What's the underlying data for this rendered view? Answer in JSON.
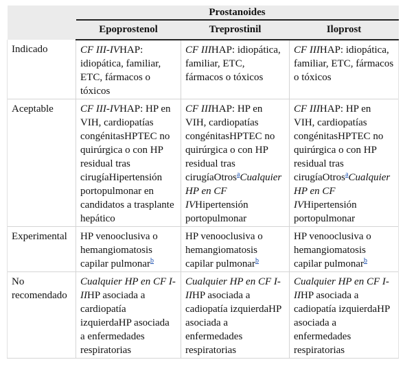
{
  "table": {
    "group_header": "Prostanoides",
    "columns": [
      "Epoprostenol",
      "Treprostinil",
      "Iloprost"
    ],
    "rows": [
      {
        "label": "Indicado",
        "cells": [
          [
            {
              "t": "CF III-IV",
              "i": true
            },
            {
              "t": "HAP: idiopática, familiar, ETC, fármacos o tóxicos"
            }
          ],
          [
            {
              "t": "CF III",
              "i": true
            },
            {
              "t": "HAP: idiopática, familiar, ETC, fármacos o tóxicos"
            }
          ],
          [
            {
              "t": "CF III",
              "i": true
            },
            {
              "t": "HAP: idiopática, familiar, ETC, fármacos o tóxicos"
            }
          ]
        ]
      },
      {
        "label": "Aceptable",
        "cells": [
          [
            {
              "t": "CF III-IV",
              "i": true
            },
            {
              "t": "HAP: HP en VIH, cardiopatías congénitasHPTEC no quirúrgica o con HP residual tras cirugíaHipertensión portopulmonar en candidatos a trasplante hepático"
            }
          ],
          [
            {
              "t": "CF III",
              "i": true
            },
            {
              "t": "HAP: HP en VIH, cardiopatías congénitasHPTEC no quirúrgica o con HP residual tras cirugíaOtros"
            },
            {
              "t": "a",
              "fn": true
            },
            {
              "t": "Cualquier HP en CF IV",
              "i": true
            },
            {
              "t": "Hipertensión portopulmonar"
            }
          ],
          [
            {
              "t": "CF III",
              "i": true
            },
            {
              "t": "HAP: HP en VIH, cardiopatías congénitasHPTEC no quirúrgica o con HP residual tras cirugíaOtros"
            },
            {
              "t": "a",
              "fn": true
            },
            {
              "t": "Cualquier HP en CF IV",
              "i": true
            },
            {
              "t": "Hipertensión portopulmonar"
            }
          ]
        ]
      },
      {
        "label": "Experimental",
        "cells": [
          [
            {
              "t": "HP venooclusiva o hemangiomatosis capilar pulmonar"
            },
            {
              "t": "b",
              "fn": true
            }
          ],
          [
            {
              "t": "HP venooclusiva o hemangiomatosis capilar pulmonar"
            },
            {
              "t": "b",
              "fn": true
            }
          ],
          [
            {
              "t": "HP venooclusiva o hemangiomatosis capilar pulmonar"
            },
            {
              "t": "b",
              "fn": true
            }
          ]
        ]
      },
      {
        "label": "No recomendado",
        "cells": [
          [
            {
              "t": "Cualquier HP en CF I-II",
              "i": true
            },
            {
              "t": "HP asociada a cardiopatía izquierdaHP asociada a enfermedades respiratorias"
            }
          ],
          [
            {
              "t": "Cualquier HP en CF I-II",
              "i": true
            },
            {
              "t": "HP asociada a cadiopatía izquierdaHP asociada a enfermedades respiratorias"
            }
          ],
          [
            {
              "t": "Cualquier HP en CF I-II",
              "i": true
            },
            {
              "t": "HP asociada a cadiopatía izquierdaHP asociada a enfermedades respiratorias"
            }
          ]
        ]
      }
    ]
  }
}
